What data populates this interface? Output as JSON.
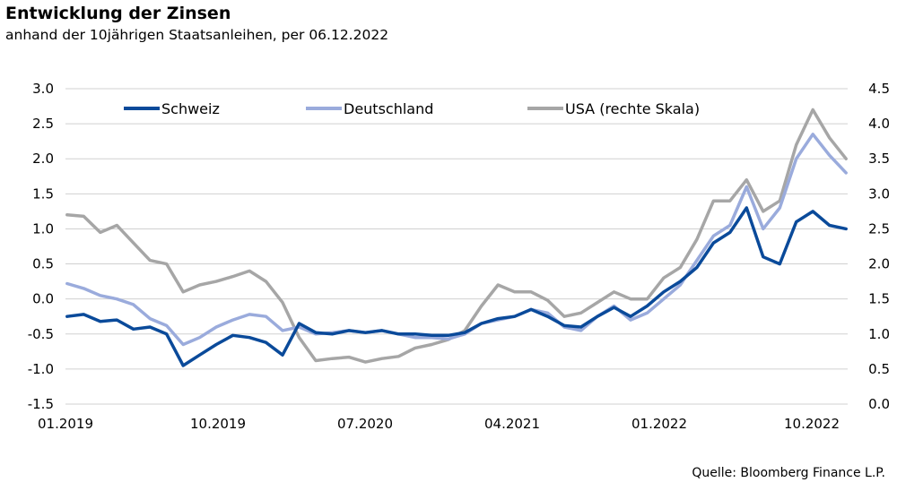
{
  "title": "Entwicklung der Zinsen",
  "subtitle": "anhand der 10jährigen Staatsanleihen, per 06.12.2022",
  "source": "Quelle: Bloomberg Finance L.P.",
  "chart_data": {
    "type": "line",
    "x_tick_labels": [
      "01.2019",
      "10.2019",
      "07.2020",
      "04.2021",
      "01.2022",
      "10.2022"
    ],
    "y_left": {
      "ticks": [
        "3.0",
        "2.5",
        "2.0",
        "1.5",
        "1.0",
        "0.5",
        "0.0",
        "-0.5",
        "-1.0",
        "-1.5"
      ],
      "ylim": [
        -1.5,
        3.0
      ]
    },
    "y_right": {
      "ticks": [
        "4.5",
        "4.0",
        "3.5",
        "3.0",
        "2.5",
        "2.0",
        "1.5",
        "1.0",
        "0.5",
        "0.0"
      ],
      "ylim": [
        0.0,
        4.5
      ]
    },
    "grid": true,
    "legend_position": "top",
    "series": [
      {
        "name": "Schweiz",
        "axis": "left",
        "color": "#0a4a9a",
        "points": [
          [
            "2019-01",
            -0.25
          ],
          [
            "2019-02",
            -0.22
          ],
          [
            "2019-03",
            -0.32
          ],
          [
            "2019-04",
            -0.3
          ],
          [
            "2019-05",
            -0.43
          ],
          [
            "2019-06",
            -0.4
          ],
          [
            "2019-07",
            -0.5
          ],
          [
            "2019-08",
            -0.95
          ],
          [
            "2019-09",
            -0.8
          ],
          [
            "2019-10",
            -0.65
          ],
          [
            "2019-11",
            -0.52
          ],
          [
            "2019-12",
            -0.55
          ],
          [
            "2020-01",
            -0.62
          ],
          [
            "2020-02",
            -0.8
          ],
          [
            "2020-03",
            -0.35
          ],
          [
            "2020-04",
            -0.48
          ],
          [
            "2020-05",
            -0.5
          ],
          [
            "2020-06",
            -0.45
          ],
          [
            "2020-07",
            -0.48
          ],
          [
            "2020-08",
            -0.45
          ],
          [
            "2020-09",
            -0.5
          ],
          [
            "2020-10",
            -0.5
          ],
          [
            "2020-11",
            -0.52
          ],
          [
            "2020-12",
            -0.52
          ],
          [
            "2021-01",
            -0.48
          ],
          [
            "2021-02",
            -0.35
          ],
          [
            "2021-03",
            -0.28
          ],
          [
            "2021-04",
            -0.25
          ],
          [
            "2021-05",
            -0.15
          ],
          [
            "2021-06",
            -0.25
          ],
          [
            "2021-07",
            -0.38
          ],
          [
            "2021-08",
            -0.4
          ],
          [
            "2021-09",
            -0.25
          ],
          [
            "2021-10",
            -0.12
          ],
          [
            "2021-11",
            -0.25
          ],
          [
            "2021-12",
            -0.1
          ],
          [
            "2022-01",
            0.1
          ],
          [
            "2022-02",
            0.25
          ],
          [
            "2022-03",
            0.45
          ],
          [
            "2022-04",
            0.8
          ],
          [
            "2022-05",
            0.95
          ],
          [
            "2022-06",
            1.3
          ],
          [
            "2022-07",
            0.6
          ],
          [
            "2022-08",
            0.5
          ],
          [
            "2022-09",
            1.1
          ],
          [
            "2022-10",
            1.25
          ],
          [
            "2022-11",
            1.05
          ],
          [
            "2022-12",
            1.0
          ]
        ]
      },
      {
        "name": "Deutschland",
        "axis": "left",
        "color": "#9aabdc",
        "points": [
          [
            "2019-01",
            0.22
          ],
          [
            "2019-02",
            0.15
          ],
          [
            "2019-03",
            0.05
          ],
          [
            "2019-04",
            0.0
          ],
          [
            "2019-05",
            -0.08
          ],
          [
            "2019-06",
            -0.28
          ],
          [
            "2019-07",
            -0.38
          ],
          [
            "2019-08",
            -0.65
          ],
          [
            "2019-09",
            -0.55
          ],
          [
            "2019-10",
            -0.4
          ],
          [
            "2019-11",
            -0.3
          ],
          [
            "2019-12",
            -0.22
          ],
          [
            "2020-01",
            -0.25
          ],
          [
            "2020-02",
            -0.45
          ],
          [
            "2020-03",
            -0.4
          ],
          [
            "2020-04",
            -0.5
          ],
          [
            "2020-05",
            -0.48
          ],
          [
            "2020-06",
            -0.45
          ],
          [
            "2020-07",
            -0.48
          ],
          [
            "2020-08",
            -0.45
          ],
          [
            "2020-09",
            -0.5
          ],
          [
            "2020-10",
            -0.55
          ],
          [
            "2020-11",
            -0.55
          ],
          [
            "2020-12",
            -0.57
          ],
          [
            "2021-01",
            -0.5
          ],
          [
            "2021-02",
            -0.35
          ],
          [
            "2021-03",
            -0.3
          ],
          [
            "2021-04",
            -0.25
          ],
          [
            "2021-05",
            -0.15
          ],
          [
            "2021-06",
            -0.2
          ],
          [
            "2021-07",
            -0.4
          ],
          [
            "2021-08",
            -0.45
          ],
          [
            "2021-09",
            -0.25
          ],
          [
            "2021-10",
            -0.1
          ],
          [
            "2021-11",
            -0.3
          ],
          [
            "2021-12",
            -0.2
          ],
          [
            "2022-01",
            0.0
          ],
          [
            "2022-02",
            0.2
          ],
          [
            "2022-03",
            0.55
          ],
          [
            "2022-04",
            0.9
          ],
          [
            "2022-05",
            1.05
          ],
          [
            "2022-06",
            1.6
          ],
          [
            "2022-07",
            1.0
          ],
          [
            "2022-08",
            1.3
          ],
          [
            "2022-09",
            2.0
          ],
          [
            "2022-10",
            2.35
          ],
          [
            "2022-11",
            2.05
          ],
          [
            "2022-12",
            1.8
          ]
        ]
      },
      {
        "name": "USA (rechte Skala)",
        "axis": "right",
        "color": "#a6a6a6",
        "points": [
          [
            "2019-01",
            2.7
          ],
          [
            "2019-02",
            2.68
          ],
          [
            "2019-03",
            2.45
          ],
          [
            "2019-04",
            2.55
          ],
          [
            "2019-05",
            2.3
          ],
          [
            "2019-06",
            2.05
          ],
          [
            "2019-07",
            2.0
          ],
          [
            "2019-08",
            1.6
          ],
          [
            "2019-09",
            1.7
          ],
          [
            "2019-10",
            1.75
          ],
          [
            "2019-11",
            1.82
          ],
          [
            "2019-12",
            1.9
          ],
          [
            "2020-01",
            1.75
          ],
          [
            "2020-02",
            1.45
          ],
          [
            "2020-03",
            0.95
          ],
          [
            "2020-04",
            0.62
          ],
          [
            "2020-05",
            0.65
          ],
          [
            "2020-06",
            0.67
          ],
          [
            "2020-07",
            0.6
          ],
          [
            "2020-08",
            0.65
          ],
          [
            "2020-09",
            0.68
          ],
          [
            "2020-10",
            0.8
          ],
          [
            "2020-11",
            0.85
          ],
          [
            "2020-12",
            0.92
          ],
          [
            "2021-01",
            1.05
          ],
          [
            "2021-02",
            1.4
          ],
          [
            "2021-03",
            1.7
          ],
          [
            "2021-04",
            1.6
          ],
          [
            "2021-05",
            1.6
          ],
          [
            "2021-06",
            1.48
          ],
          [
            "2021-07",
            1.25
          ],
          [
            "2021-08",
            1.3
          ],
          [
            "2021-09",
            1.45
          ],
          [
            "2021-10",
            1.6
          ],
          [
            "2021-11",
            1.5
          ],
          [
            "2021-12",
            1.5
          ],
          [
            "2022-01",
            1.8
          ],
          [
            "2022-02",
            1.95
          ],
          [
            "2022-03",
            2.35
          ],
          [
            "2022-04",
            2.9
          ],
          [
            "2022-05",
            2.9
          ],
          [
            "2022-06",
            3.2
          ],
          [
            "2022-07",
            2.75
          ],
          [
            "2022-08",
            2.9
          ],
          [
            "2022-09",
            3.7
          ],
          [
            "2022-10",
            4.2
          ],
          [
            "2022-11",
            3.8
          ],
          [
            "2022-12",
            3.5
          ]
        ]
      }
    ]
  }
}
